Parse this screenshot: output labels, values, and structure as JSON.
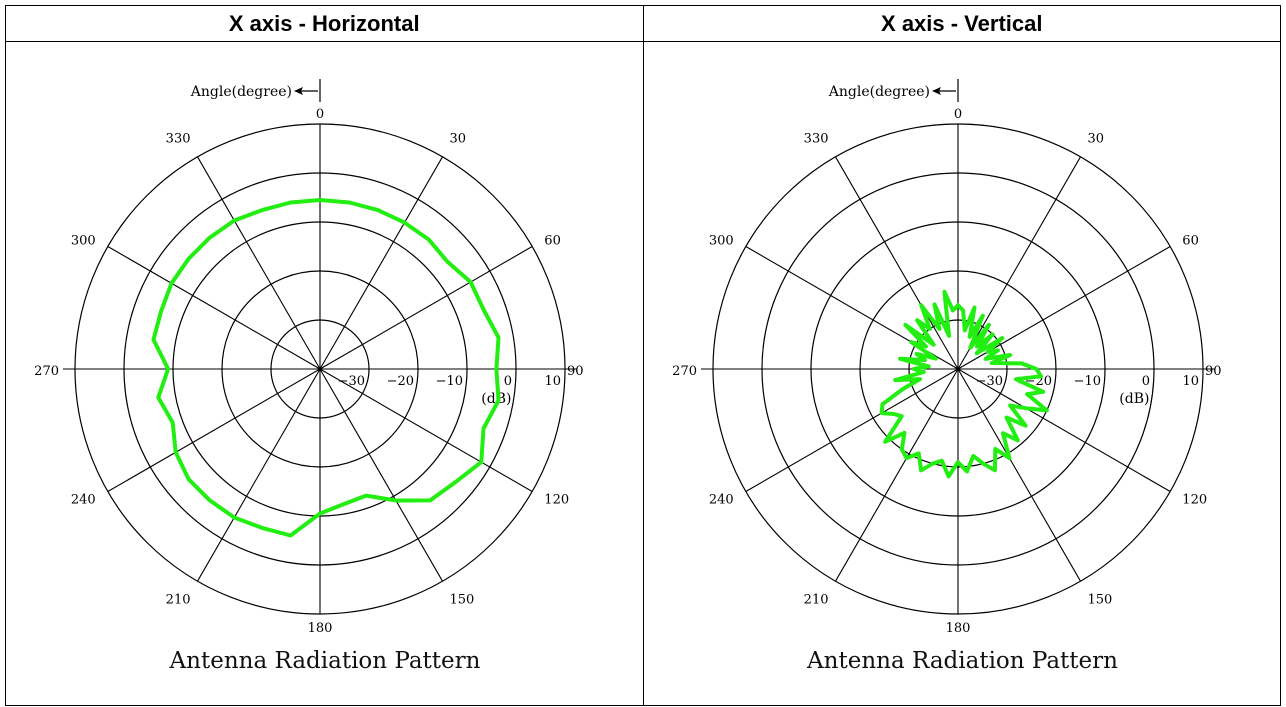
{
  "panels": [
    {
      "title": "X axis - Horizontal"
    },
    {
      "title": "X axis - Vertical"
    }
  ],
  "chart_data": [
    {
      "type": "polar-line",
      "title": "Antenna Radiation Pattern",
      "angle_label": "Angle(degree)",
      "radial_unit": "(dB)",
      "radial_min": -40,
      "radial_max": 10,
      "radial_ticks": [
        -30,
        -20,
        -10,
        0,
        10
      ],
      "radial_tick_labels": [
        "−30",
        "−20",
        "−10",
        "0",
        "10"
      ],
      "angle_ticks": [
        0,
        30,
        60,
        90,
        120,
        150,
        180,
        210,
        240,
        270,
        300,
        330
      ],
      "angle_tick_labels": [
        "0",
        "330",
        "300",
        "270",
        "240",
        "210",
        "180",
        "150",
        "120",
        "90",
        "60",
        "30"
      ],
      "angle_direction": "counter-clockwise, 0 at top",
      "series_color": "#22ee11",
      "series": [
        {
          "angles": [
            0,
            10,
            20,
            30,
            40,
            50,
            60,
            70,
            80,
            90,
            100,
            110,
            120,
            130,
            140,
            150,
            160,
            170,
            180,
            190,
            200,
            210,
            220,
            230,
            240,
            250,
            260,
            270,
            280,
            290,
            300,
            310,
            320,
            330,
            340,
            350
          ],
          "values": [
            -5.5,
            -5.5,
            -5.5,
            -5,
            -5,
            -5,
            -5,
            -5.5,
            -5.5,
            -9,
            -6.5,
            -8,
            -6,
            -5,
            -5,
            -5,
            -5.5,
            -5.5,
            -10.5,
            -12,
            -12.5,
            -9,
            -5,
            -4,
            -2,
            -4.5,
            -3,
            -4,
            -3,
            -4.5,
            -4.5,
            -6,
            -5.5,
            -5.5,
            -5.5,
            -5.5
          ]
        }
      ]
    },
    {
      "type": "polar-line",
      "title": "Antenna Radiation Pattern",
      "angle_label": "Angle(degree)",
      "radial_unit": "(dB)",
      "radial_min": -40,
      "radial_max": 10,
      "radial_ticks": [
        -30,
        -20,
        -10,
        0,
        10
      ],
      "radial_tick_labels": [
        "−30",
        "−20",
        "−10",
        "0",
        "10"
      ],
      "angle_ticks": [
        0,
        30,
        60,
        90,
        120,
        150,
        180,
        210,
        240,
        270,
        300,
        330
      ],
      "angle_tick_labels": [
        "0",
        "330",
        "300",
        "270",
        "240",
        "210",
        "180",
        "150",
        "120",
        "90",
        "60",
        "30"
      ],
      "angle_direction": "counter-clockwise, 0 at top",
      "series_color": "#22ee11",
      "series": [
        {
          "angles": [
            0,
            5,
            10,
            15,
            20,
            25,
            30,
            35,
            40,
            45,
            50,
            55,
            60,
            65,
            70,
            75,
            80,
            85,
            90,
            95,
            100,
            105,
            110,
            115,
            120,
            125,
            130,
            135,
            140,
            145,
            150,
            155,
            160,
            165,
            170,
            175,
            180,
            185,
            190,
            195,
            200,
            205,
            210,
            215,
            220,
            225,
            230,
            235,
            240,
            245,
            250,
            255,
            260,
            265,
            270,
            275,
            280,
            285,
            290,
            295,
            300,
            305,
            310,
            315,
            320,
            325,
            330,
            335,
            340,
            345,
            350,
            355
          ],
          "values": [
            -27,
            -28,
            -24,
            -33,
            -26,
            -31,
            -25,
            -30,
            -27,
            -33,
            -26,
            -32,
            -29,
            -35,
            -31,
            -33,
            -28,
            -34,
            -31,
            -33,
            -27,
            -32,
            -28,
            -23,
            -22,
            -24,
            -25,
            -19,
            -23,
            -20,
            -19,
            -21,
            -18,
            -20,
            -21,
            -18,
            -21,
            -19,
            -22,
            -20,
            -18,
            -22,
            -19,
            -24,
            -21,
            -26,
            -22,
            -27,
            -24,
            -20,
            -25,
            -22,
            -28,
            -23,
            -24,
            -27,
            -33,
            -29,
            -34,
            -31,
            -33,
            -29,
            -35,
            -30,
            -34,
            -29,
            -35,
            -28,
            -33,
            -27,
            -32,
            -28
          ]
        }
      ]
    }
  ]
}
